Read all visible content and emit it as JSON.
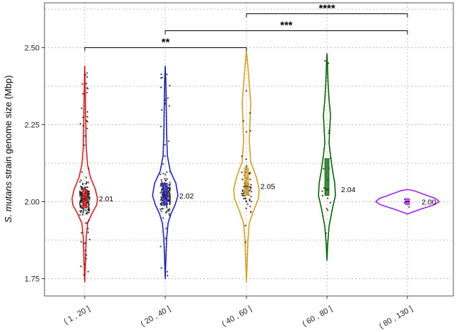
{
  "chart_data": {
    "type": "violin",
    "ylabel_italic": "S. mutans",
    "ylabel_rest": " strain genome size (Mbp)",
    "ylim": [
      1.72,
      2.65
    ],
    "yticks": [
      1.75,
      2.0,
      2.25,
      2.5
    ],
    "ytick_labels": [
      "1.75",
      "2.00",
      "2.25",
      "2.50"
    ],
    "grid": true,
    "categories": [
      "( 1 , 20 ]",
      "( 20 , 40 ]",
      "( 40 , 60 ]",
      "( 60 , 80 ]",
      "( 80 , 130 ]"
    ],
    "series": [
      {
        "category": "( 1 , 20 ]",
        "color": "#e31a1c",
        "median": 2.01,
        "median_label": "2.01",
        "min": 1.74,
        "max": 2.44,
        "q1": 1.98,
        "q3": 2.04,
        "n_points": 220
      },
      {
        "category": "( 20 , 40 ]",
        "color": "#1f1fcc",
        "median": 2.02,
        "median_label": "2.02",
        "min": 1.75,
        "max": 2.44,
        "q1": 1.99,
        "q3": 2.06,
        "n_points": 170
      },
      {
        "category": "( 40 , 60 ]",
        "color": "#d4a017",
        "median": 2.05,
        "median_label": "2.05",
        "min": 1.74,
        "max": 2.49,
        "q1": 2.02,
        "q3": 2.11,
        "n_points": 75
      },
      {
        "category": "( 60 , 80 ]",
        "color": "#006400",
        "median": 2.04,
        "median_label": "2.04",
        "min": 1.81,
        "max": 2.48,
        "q1": 2.02,
        "q3": 2.14,
        "n_points": 16
      },
      {
        "category": "( 80 , 130 ]",
        "color": "#a020f0",
        "median": 2.0,
        "median_label": "2.00",
        "min": 1.96,
        "max": 2.04,
        "q1": 1.99,
        "q3": 2.01,
        "n_points": 3
      }
    ],
    "significance": [
      {
        "from": 0,
        "to": 2,
        "y": 2.5,
        "label": "**"
      },
      {
        "from": 1,
        "to": 4,
        "y": 2.555,
        "label": "***"
      },
      {
        "from": 2,
        "to": 4,
        "y": 2.61,
        "label": "****"
      }
    ]
  }
}
